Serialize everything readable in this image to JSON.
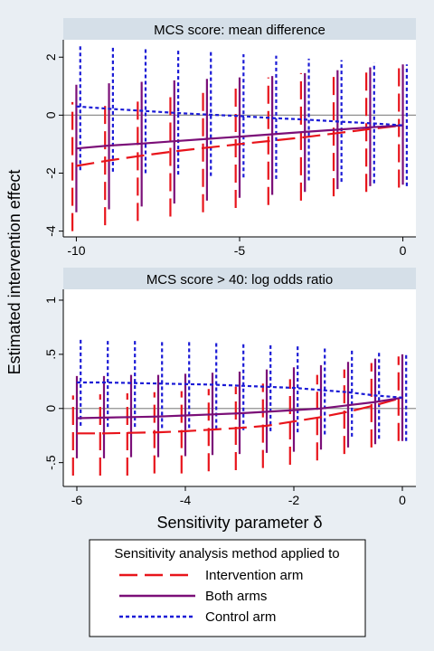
{
  "figure": {
    "ylabel": "Estimated intervention effect",
    "xlabel": "Sensitivity parameter δ",
    "legend": {
      "title": "Sensitivity analysis method applied to",
      "placement": "bottom",
      "entries": [
        {
          "label": "Intervention arm",
          "color": "#e8141b",
          "dash": "long-dash"
        },
        {
          "label": "Both arms",
          "color": "#7b0f78",
          "dash": "solid"
        },
        {
          "label": "Control arm",
          "color": "#1a1ad6",
          "dash": "short-dash"
        }
      ]
    },
    "colors": {
      "background": "#e9eef3",
      "title_band": "#d5dfe8",
      "plot": "#ffffff",
      "zero_line": "#8f8f8f"
    }
  },
  "chart_data": [
    {
      "type": "line",
      "title": "MCS score: mean difference",
      "xlim": [
        -10.4,
        0.4
      ],
      "ylim": [
        -4.2,
        2.6
      ],
      "xticks": [
        {
          "value": -10,
          "label": "-10"
        },
        {
          "value": -5,
          "label": "-5"
        },
        {
          "value": 0,
          "label": "0"
        }
      ],
      "yticks": [
        {
          "value": -4,
          "label": "-4"
        },
        {
          "value": -2,
          "label": "-2"
        },
        {
          "value": 0,
          "label": "0"
        },
        {
          "value": 2,
          "label": "2"
        }
      ],
      "zero_line": true,
      "x": [
        -10,
        -9,
        -8,
        -7,
        -6,
        -5,
        -4,
        -3,
        -2,
        -1,
        0
      ],
      "series": [
        {
          "name": "Intervention arm",
          "offset": -0.12,
          "values": [
            -1.75,
            -1.56,
            -1.4,
            -1.25,
            -1.12,
            -1.0,
            -0.88,
            -0.76,
            -0.62,
            -0.48,
            -0.35
          ],
          "lower": [
            -4.0,
            -3.8,
            -3.65,
            -3.5,
            -3.35,
            -3.2,
            -3.1,
            -2.95,
            -2.8,
            -2.65,
            -2.5
          ],
          "upper": [
            0.45,
            0.55,
            0.7,
            0.85,
            1.0,
            1.15,
            1.3,
            1.45,
            1.55,
            1.7,
            1.8
          ]
        },
        {
          "name": "Both arms",
          "offset": 0.0,
          "values": [
            -1.15,
            -1.05,
            -0.98,
            -0.9,
            -0.82,
            -0.74,
            -0.66,
            -0.58,
            -0.5,
            -0.42,
            -0.35
          ],
          "lower": [
            -3.35,
            -3.25,
            -3.15,
            -3.05,
            -2.95,
            -2.85,
            -2.75,
            -2.65,
            -2.55,
            -2.45,
            -2.4
          ],
          "upper": [
            1.05,
            1.1,
            1.15,
            1.2,
            1.25,
            1.3,
            1.35,
            1.45,
            1.55,
            1.65,
            1.75
          ]
        },
        {
          "name": "Control arm",
          "offset": 0.12,
          "values": [
            0.3,
            0.22,
            0.15,
            0.08,
            0.02,
            -0.03,
            -0.1,
            -0.15,
            -0.22,
            -0.28,
            -0.35
          ],
          "lower": [
            -1.9,
            -1.95,
            -2.0,
            -2.05,
            -2.1,
            -2.15,
            -2.2,
            -2.25,
            -2.3,
            -2.35,
            -2.45
          ],
          "upper": [
            2.45,
            2.4,
            2.35,
            2.25,
            2.2,
            2.1,
            2.05,
            1.95,
            1.9,
            1.8,
            1.75
          ]
        }
      ]
    },
    {
      "type": "line",
      "title": "MCS score > 40: log odds ratio",
      "xlim": [
        -6.25,
        0.25
      ],
      "ylim": [
        -0.72,
        1.1
      ],
      "xticks": [
        {
          "value": -6,
          "label": "-6"
        },
        {
          "value": -4,
          "label": "-4"
        },
        {
          "value": -2,
          "label": "-2"
        },
        {
          "value": 0,
          "label": "0"
        }
      ],
      "yticks": [
        {
          "value": -0.5,
          "label": "-.5"
        },
        {
          "value": 0,
          "label": "0"
        },
        {
          "value": 0.5,
          "label": ".5"
        },
        {
          "value": 1,
          "label": "1"
        }
      ],
      "zero_line": true,
      "x": [
        -6,
        -5.5,
        -5,
        -4.5,
        -4,
        -3.5,
        -3,
        -2.5,
        -2,
        -1.5,
        -1,
        -0.5,
        0
      ],
      "series": [
        {
          "name": "Intervention arm",
          "offset": -0.07,
          "values": [
            -0.23,
            -0.23,
            -0.225,
            -0.22,
            -0.21,
            -0.195,
            -0.18,
            -0.16,
            -0.12,
            -0.08,
            -0.03,
            0.03,
            0.1
          ],
          "lower": [
            -0.62,
            -0.62,
            -0.62,
            -0.6,
            -0.6,
            -0.58,
            -0.57,
            -0.55,
            -0.52,
            -0.48,
            -0.42,
            -0.36,
            -0.3
          ],
          "upper": [
            0.12,
            0.13,
            0.14,
            0.15,
            0.16,
            0.18,
            0.2,
            0.23,
            0.27,
            0.31,
            0.36,
            0.42,
            0.48
          ]
        },
        {
          "name": "Both arms",
          "offset": 0.0,
          "values": [
            -0.09,
            -0.085,
            -0.08,
            -0.075,
            -0.065,
            -0.055,
            -0.045,
            -0.03,
            -0.015,
            0.0,
            0.03,
            0.06,
            0.1
          ],
          "lower": [
            -0.46,
            -0.46,
            -0.45,
            -0.45,
            -0.44,
            -0.43,
            -0.42,
            -0.41,
            -0.4,
            -0.38,
            -0.36,
            -0.33,
            -0.3
          ],
          "upper": [
            0.3,
            0.3,
            0.31,
            0.31,
            0.32,
            0.33,
            0.34,
            0.36,
            0.38,
            0.4,
            0.43,
            0.46,
            0.5
          ]
        },
        {
          "name": "Control arm",
          "offset": 0.07,
          "values": [
            0.24,
            0.24,
            0.235,
            0.23,
            0.225,
            0.22,
            0.21,
            0.2,
            0.19,
            0.17,
            0.15,
            0.12,
            0.1
          ],
          "lower": [
            -0.16,
            -0.17,
            -0.17,
            -0.18,
            -0.18,
            -0.19,
            -0.2,
            -0.21,
            -0.22,
            -0.24,
            -0.26,
            -0.28,
            -0.3
          ],
          "upper": [
            0.64,
            0.63,
            0.63,
            0.62,
            0.62,
            0.61,
            0.6,
            0.59,
            0.58,
            0.56,
            0.54,
            0.52,
            0.5
          ]
        }
      ]
    }
  ]
}
